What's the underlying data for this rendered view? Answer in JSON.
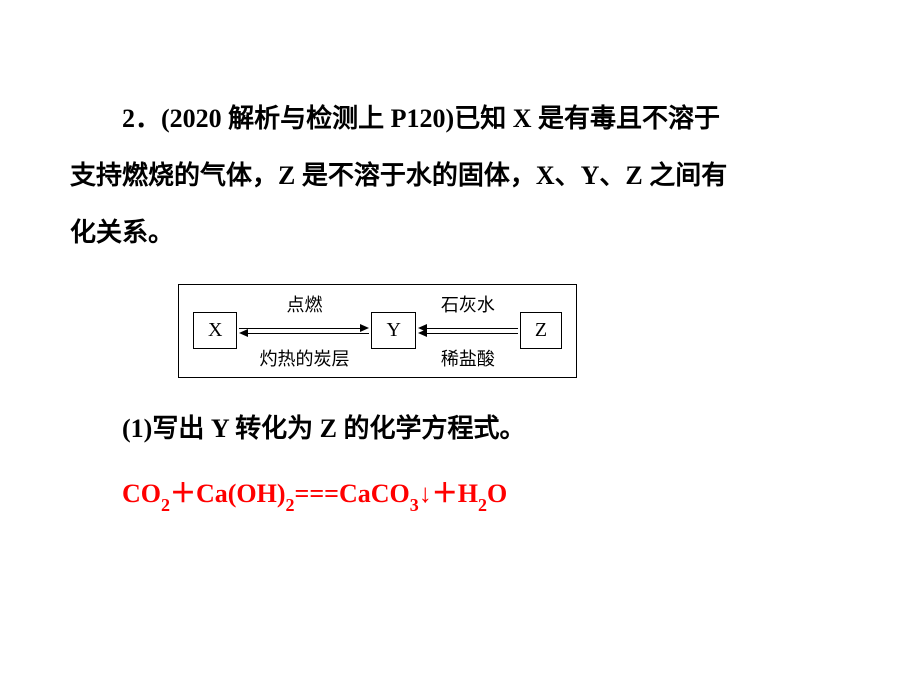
{
  "problem": {
    "line1": "2．(2020 解析与检测上 P120)已知 X 是有毒且不溶于",
    "line2": "支持燃烧的气体，Z 是不溶于水的固体，X、Y、Z 之间有",
    "line3": "化关系。"
  },
  "diagram": {
    "boxX": "X",
    "boxY": "Y",
    "boxZ": "Z",
    "label_top_left": "点燃",
    "label_bottom_left": "灼热的炭层",
    "label_top_right": "石灰水",
    "label_bottom_right": "稀盐酸"
  },
  "question": {
    "q1": "(1)写出 Y 转化为 Z 的化学方程式。"
  },
  "answer": {
    "formula_parts": {
      "p1": "CO",
      "s1": "2",
      "p2": "＋Ca(OH)",
      "s2": "2",
      "p3": "===CaCO",
      "s3": "3",
      "p4": "↓＋H",
      "s4": "2",
      "p5": "O"
    }
  },
  "colors": {
    "text": "#000000",
    "answer": "#ff0000",
    "background": "#ffffff",
    "border": "#000000"
  }
}
